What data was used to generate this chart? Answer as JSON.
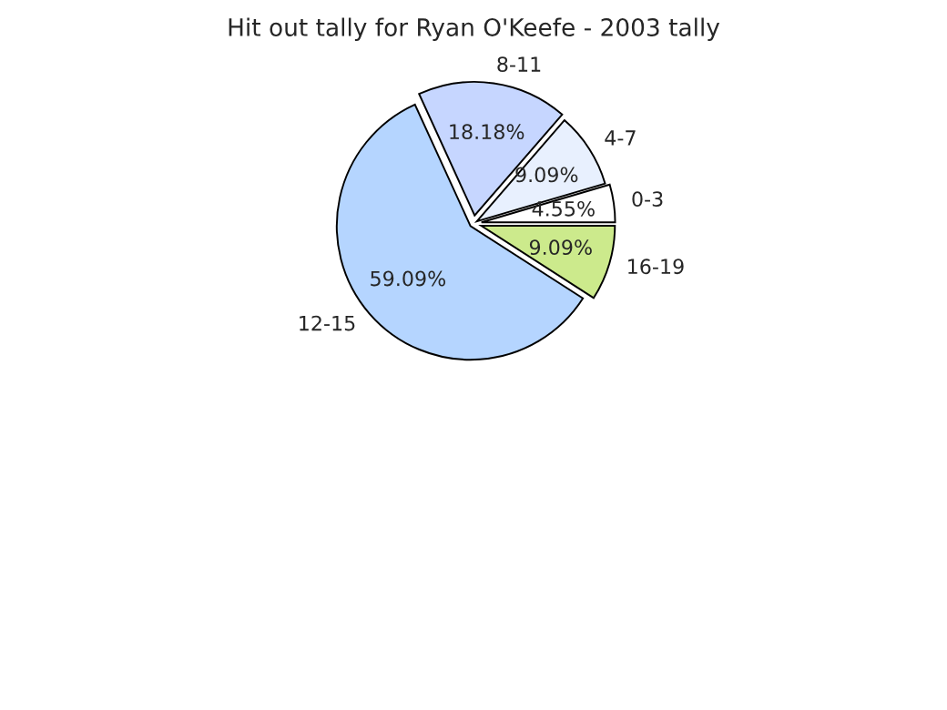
{
  "chart_data": {
    "type": "pie",
    "title": "Hit out tally for Ryan O'Keefe - 2003 tally",
    "categories": [
      "0-3",
      "4-7",
      "8-11",
      "12-15",
      "16-19"
    ],
    "values": [
      4.55,
      9.09,
      18.18,
      59.09,
      9.09
    ],
    "value_labels": [
      "4.55%",
      "9.09%",
      "18.18%",
      "59.09%",
      "9.09%"
    ],
    "colors": [
      "#ffffff",
      "#e8f0fe",
      "#c6d6ff",
      "#b5d5ff",
      "#ccea8c"
    ]
  }
}
